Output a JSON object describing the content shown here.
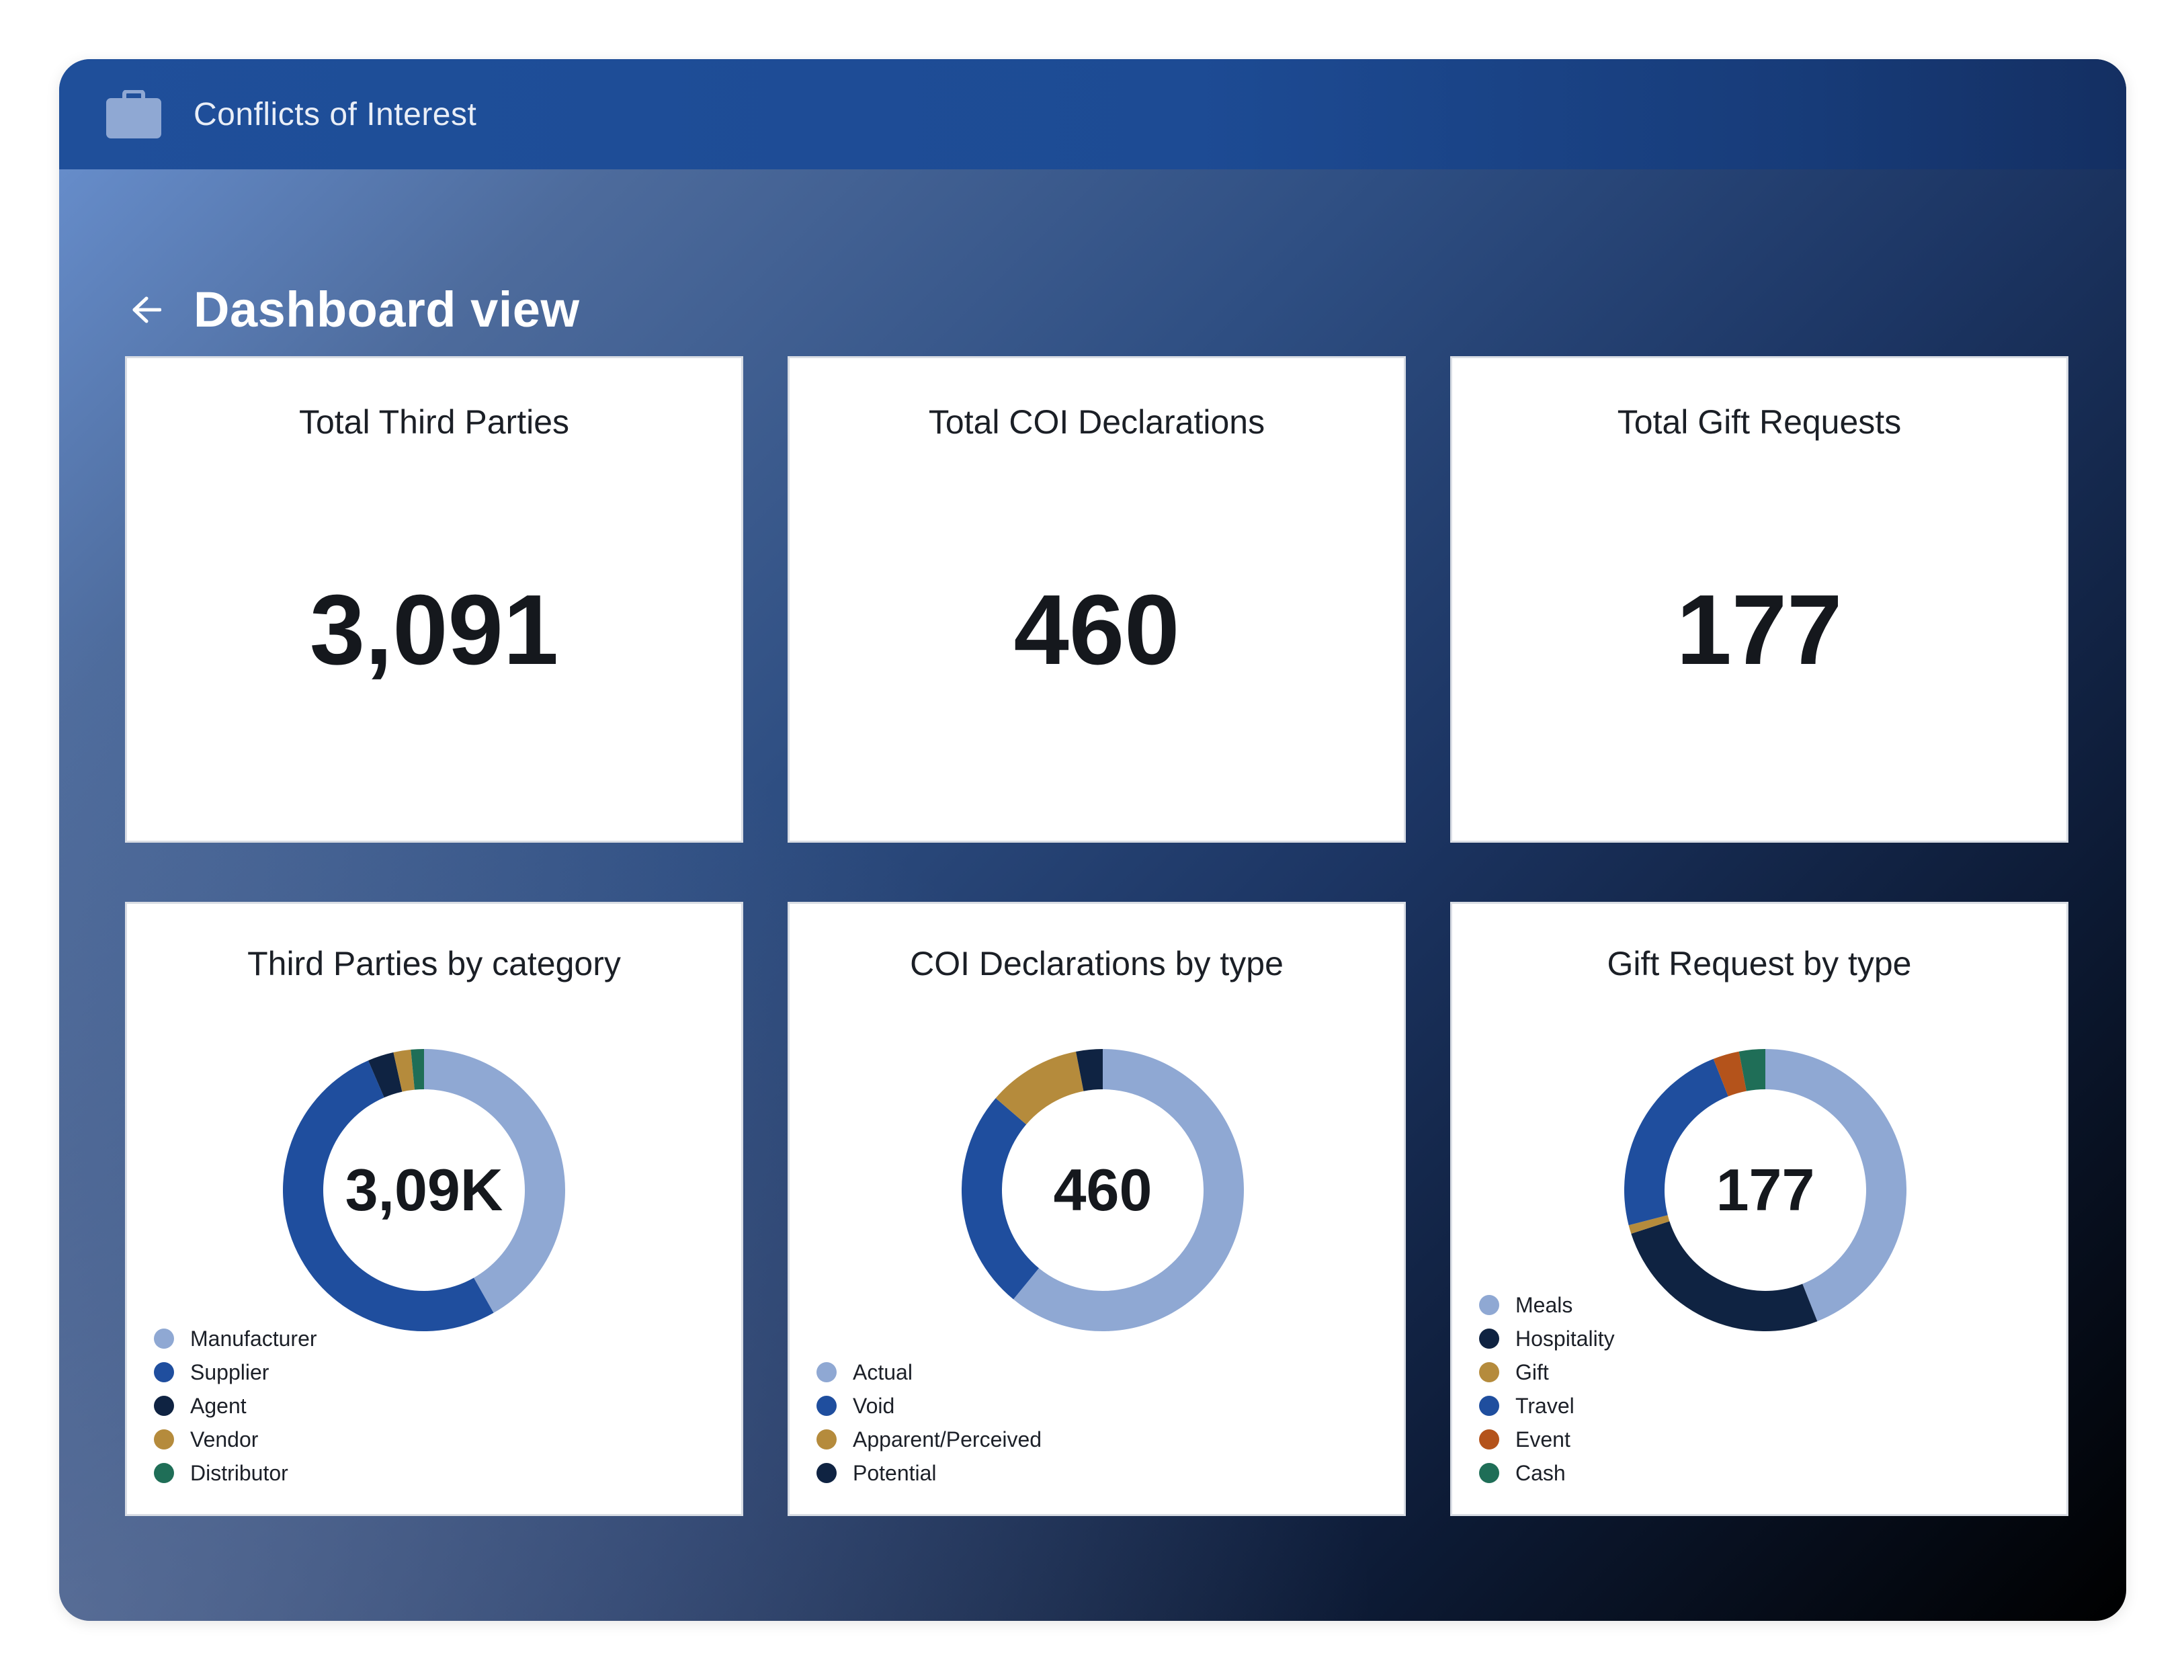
{
  "app": {
    "title": "Conflicts of Interest",
    "icon": "briefcase-icon"
  },
  "page": {
    "title": "Dashboard view"
  },
  "kpis": [
    {
      "title": "Total Third Parties",
      "value": "3,091"
    },
    {
      "title": "Total COI Declarations",
      "value": "460"
    },
    {
      "title": "Total Gift Requests",
      "value": "177"
    }
  ],
  "colors": {
    "light_blue": "#8fa8d3",
    "blue": "#1f4e9e",
    "navy": "#0f2342",
    "gold": "#b58b3c",
    "green": "#1f6e57",
    "orange": "#b4531b"
  },
  "chart_data": [
    {
      "type": "pie",
      "title": "Third Parties by category",
      "center_label": "3,09K",
      "series": [
        {
          "name": "Manufacturer",
          "value": 42,
          "color": "#8fa8d3"
        },
        {
          "name": "Supplier",
          "value": 52,
          "color": "#1f4e9e"
        },
        {
          "name": "Agent",
          "value": 3,
          "color": "#0f2342"
        },
        {
          "name": "Vendor",
          "value": 2,
          "color": "#b58b3c"
        },
        {
          "name": "Distributor",
          "value": 1.5,
          "color": "#1f6e57"
        }
      ]
    },
    {
      "type": "pie",
      "title": "COI Declarations by type",
      "center_label": "460",
      "series": [
        {
          "name": "Actual",
          "value": 60,
          "color": "#8fa8d3"
        },
        {
          "name": "Void",
          "value": 25,
          "color": "#1f4e9e"
        },
        {
          "name": "Apparent/Perceived",
          "value": 10.5,
          "color": "#b58b3c"
        },
        {
          "name": "Potential",
          "value": 3,
          "color": "#0f2342"
        }
      ]
    },
    {
      "type": "pie",
      "title": "Gift Request by type",
      "center_label": "177",
      "series": [
        {
          "name": "Meals",
          "value": 44,
          "color": "#8fa8d3"
        },
        {
          "name": "Hospitality",
          "value": 26,
          "color": "#0f2342"
        },
        {
          "name": "Gift",
          "value": 1,
          "color": "#b58b3c"
        },
        {
          "name": "Travel",
          "value": 23,
          "color": "#1f4e9e"
        },
        {
          "name": "Event",
          "value": 3,
          "color": "#b4531b"
        },
        {
          "name": "Cash",
          "value": 3,
          "color": "#1f6e57"
        }
      ]
    }
  ]
}
